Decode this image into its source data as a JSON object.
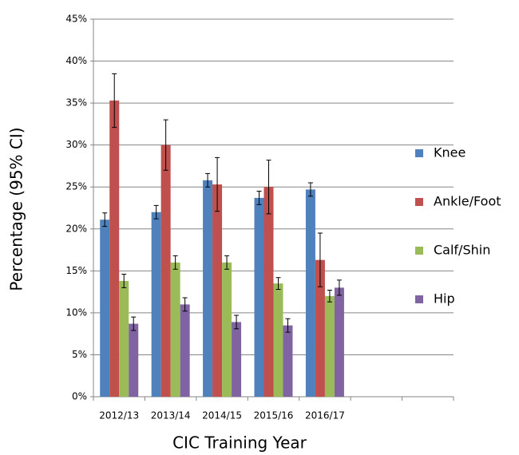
{
  "chart_data": {
    "type": "bar",
    "x_label": "CIC  Training Year",
    "y_label": "Percentage  (95% CI)",
    "categories": [
      "2012/13",
      "2013/14",
      "2014/15",
      "2015/16",
      "2016/17",
      null,
      null
    ],
    "series": [
      {
        "name": "Knee",
        "color": "#4f81bd",
        "values": [
          21.1,
          22.0,
          25.8,
          23.7,
          24.7,
          null,
          null
        ],
        "errors": [
          0.8,
          0.8,
          0.8,
          0.8,
          0.8,
          null,
          null
        ]
      },
      {
        "name": "Ankle/Foot",
        "color": "#c0504d",
        "values": [
          35.3,
          30.0,
          25.3,
          25.0,
          16.3,
          null,
          null
        ],
        "errors": [
          3.2,
          3.0,
          3.2,
          3.2,
          3.2,
          null,
          null
        ]
      },
      {
        "name": "Calf/Shin",
        "color": "#9bbb59",
        "values": [
          13.8,
          16.0,
          16.0,
          13.5,
          12.0,
          null,
          null
        ],
        "errors": [
          0.8,
          0.8,
          0.8,
          0.7,
          0.7,
          null,
          null
        ]
      },
      {
        "name": "Hip",
        "color": "#8064a2",
        "values": [
          8.7,
          11.0,
          8.9,
          8.5,
          13.0,
          null,
          null
        ],
        "errors": [
          0.8,
          0.8,
          0.8,
          0.8,
          0.9,
          null,
          null
        ]
      }
    ],
    "ylim": [
      0,
      45
    ],
    "yticks": [
      {
        "value": 0,
        "label": "0%"
      },
      {
        "value": 5,
        "label": "5%"
      },
      {
        "value": 10,
        "label": "10%"
      },
      {
        "value": 15,
        "label": "15%"
      },
      {
        "value": 20,
        "label": "20%"
      },
      {
        "value": 25,
        "label": "25%"
      },
      {
        "value": 30,
        "label": "30%"
      },
      {
        "value": 35,
        "label": "35%"
      },
      {
        "value": 40,
        "label": "40%"
      },
      {
        "value": 45,
        "label": "45%"
      }
    ],
    "grid": true,
    "legend": "right"
  }
}
